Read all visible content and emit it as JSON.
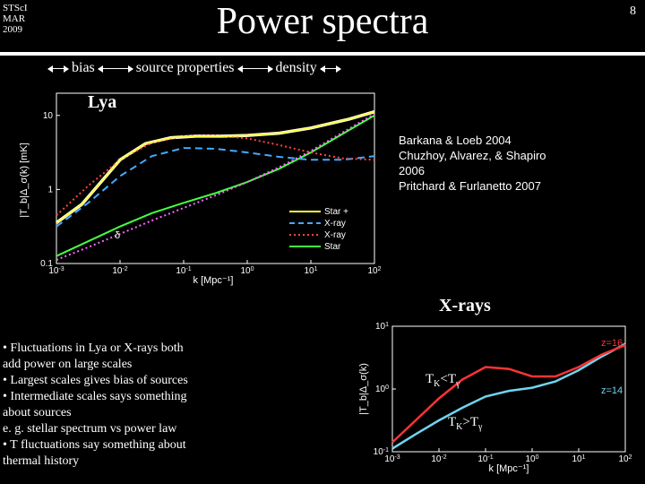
{
  "header": {
    "venue": "STScI",
    "month": "MAR",
    "year": "2009",
    "page": "8",
    "title": "Power spectra"
  },
  "annotations": {
    "bias": "bias",
    "source": "source properties",
    "density": "density"
  },
  "lya_label": "Lya",
  "references": {
    "r1": "Barkana & Loeb 2004",
    "r2": "Chuzhoy, Alvarez, & Shapiro",
    "r2b": "2006",
    "r3": "Pritchard & Furlanetto 2007"
  },
  "xrays_label": "X-rays",
  "bullets": {
    "b1": "• Fluctuations in Lya or X-rays both",
    "b1a": "    add power on large scales",
    "b2": "• Largest scales gives bias of sources",
    "b3": "• Intermediate scales says something",
    "b3a": "    about sources",
    "b3b": "    e. g. stellar spectrum vs power law",
    "b4": "• T fluctuations say something about",
    "b4a": "    thermal history"
  },
  "chart_main": {
    "xlabel": "k [Mpc⁻¹]",
    "ylabel": "|T_b|Δ_σ(k) [mK]",
    "xmin": -3,
    "xmax": 2,
    "ymin": -1,
    "ymax": 1.3,
    "xticks": [
      -3,
      -2,
      -1,
      0,
      1,
      2
    ],
    "yticks": [
      -1,
      0,
      1
    ],
    "ytick_labels": [
      "0.1",
      "1",
      "10"
    ],
    "legend": [
      {
        "label": "Star +",
        "color": "#ffff44",
        "style": "solid"
      },
      {
        "label": "X-ray",
        "color": "#44aaff",
        "style": "dash"
      },
      {
        "label": "X-ray",
        "color": "#ff4444",
        "style": "dot"
      },
      {
        "label": "Star",
        "color": "#44ff44",
        "style": "solid"
      }
    ],
    "delta_label": "δ",
    "delta_color": "#ff66ff",
    "curves": {
      "back": {
        "color": "#ffffff",
        "pts": [
          [
            -3,
            -0.45
          ],
          [
            -2.6,
            -0.2
          ],
          [
            -2.3,
            0.1
          ],
          [
            -2,
            0.4
          ],
          [
            -1.6,
            0.62
          ],
          [
            -1.2,
            0.7
          ],
          [
            -0.8,
            0.72
          ],
          [
            -0.4,
            0.72
          ],
          [
            0,
            0.73
          ],
          [
            0.5,
            0.76
          ],
          [
            1,
            0.83
          ],
          [
            1.6,
            0.95
          ],
          [
            2,
            1.05
          ]
        ]
      },
      "yellow": {
        "color": "#ffff44",
        "pts": [
          [
            -3,
            -0.45
          ],
          [
            -2.6,
            -0.2
          ],
          [
            -2.3,
            0.1
          ],
          [
            -2,
            0.4
          ],
          [
            -1.6,
            0.62
          ],
          [
            -1.2,
            0.7
          ],
          [
            -0.8,
            0.72
          ],
          [
            -0.4,
            0.72
          ],
          [
            0,
            0.73
          ],
          [
            0.5,
            0.76
          ],
          [
            1,
            0.83
          ],
          [
            1.6,
            0.95
          ],
          [
            2,
            1.05
          ]
        ]
      },
      "blue": {
        "color": "#44aaff",
        "style": "8,5",
        "pts": [
          [
            -3,
            -0.5
          ],
          [
            -2.5,
            -0.18
          ],
          [
            -2,
            0.18
          ],
          [
            -1.5,
            0.45
          ],
          [
            -1,
            0.56
          ],
          [
            -0.5,
            0.55
          ],
          [
            0,
            0.5
          ],
          [
            0.5,
            0.44
          ],
          [
            1,
            0.4
          ],
          [
            1.5,
            0.4
          ],
          [
            2,
            0.45
          ]
        ]
      },
      "red": {
        "color": "#ff4444",
        "style": "2,3",
        "pts": [
          [
            -3,
            -0.35
          ],
          [
            -2.5,
            0.05
          ],
          [
            -2,
            0.4
          ],
          [
            -1.5,
            0.63
          ],
          [
            -1,
            0.72
          ],
          [
            -0.5,
            0.73
          ],
          [
            0,
            0.69
          ],
          [
            0.5,
            0.6
          ],
          [
            1,
            0.5
          ],
          [
            1.5,
            0.42
          ],
          [
            2,
            0.4
          ]
        ]
      },
      "green": {
        "color": "#44ff44",
        "pts": [
          [
            -3,
            -0.9
          ],
          [
            -2.5,
            -0.7
          ],
          [
            -2,
            -0.5
          ],
          [
            -1.5,
            -0.32
          ],
          [
            -1,
            -0.18
          ],
          [
            -0.5,
            -0.05
          ],
          [
            0,
            0.1
          ],
          [
            0.5,
            0.28
          ],
          [
            1,
            0.5
          ],
          [
            1.5,
            0.75
          ],
          [
            2,
            1.0
          ]
        ]
      },
      "pink": {
        "color": "#ff66ff",
        "style": "2,3",
        "pts": [
          [
            -3,
            -0.95
          ],
          [
            -2.5,
            -0.78
          ],
          [
            -2,
            -0.6
          ],
          [
            -1.5,
            -0.42
          ],
          [
            -1,
            -0.25
          ],
          [
            -0.5,
            -0.08
          ],
          [
            0,
            0.1
          ],
          [
            0.5,
            0.3
          ],
          [
            1,
            0.52
          ],
          [
            1.5,
            0.77
          ],
          [
            2,
            1.02
          ]
        ]
      }
    }
  },
  "chart_sub": {
    "xlabel": "k [Mpc⁻¹]",
    "ylabel": "|T_b|Δ_σ(k)",
    "xmin": -3,
    "xmax": 2,
    "ymin": -1,
    "ymax": 1,
    "z16": "z=16",
    "z14": "z=14",
    "curves": {
      "red": {
        "color": "#ff3333",
        "pts": [
          [
            -3,
            -0.85
          ],
          [
            -2.5,
            -0.5
          ],
          [
            -2,
            -0.15
          ],
          [
            -1.5,
            0.15
          ],
          [
            -1,
            0.35
          ],
          [
            -0.5,
            0.32
          ],
          [
            0,
            0.2
          ],
          [
            0.5,
            0.2
          ],
          [
            1,
            0.35
          ],
          [
            1.5,
            0.55
          ],
          [
            2,
            0.7
          ]
        ]
      },
      "blue": {
        "color": "#70d4f0",
        "pts": [
          [
            -3,
            -0.95
          ],
          [
            -2.5,
            -0.72
          ],
          [
            -2,
            -0.5
          ],
          [
            -1.5,
            -0.3
          ],
          [
            -1,
            -0.12
          ],
          [
            -0.5,
            -0.03
          ],
          [
            0,
            0.02
          ],
          [
            0.5,
            0.12
          ],
          [
            1,
            0.3
          ],
          [
            1.5,
            0.52
          ],
          [
            2,
            0.72
          ]
        ]
      }
    }
  },
  "tk_labels": {
    "lt": "T",
    "ltk": "K",
    "ltop": "<T",
    "ltg": "γ",
    "gt": "T",
    "gtk": "K",
    "gtop": ">T",
    "gtg": "γ"
  }
}
